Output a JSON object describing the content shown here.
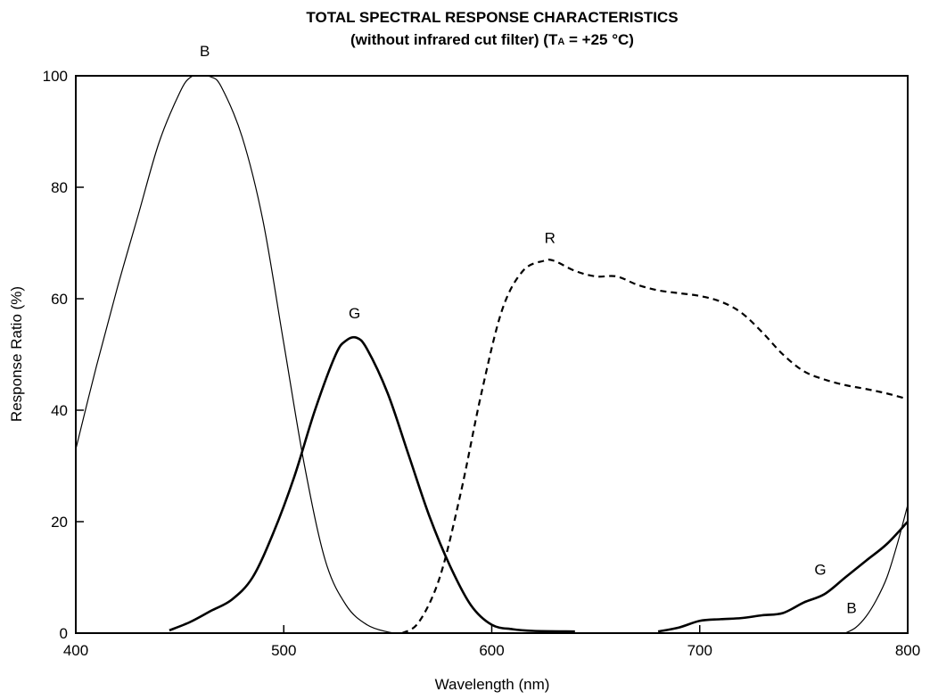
{
  "chart_data": {
    "type": "line",
    "title": "TOTAL SPECTRAL RESPONSE CHARACTERISTICS",
    "subtitle_prefix": "(without infrared cut filter) (T",
    "subtitle_sub": "A",
    "subtitle_suffix": " = +25 °C)",
    "xlabel": "Wavelength (nm)",
    "ylabel": "Response Ratio (%)",
    "xlim": [
      400,
      800
    ],
    "ylim": [
      0,
      100
    ],
    "xticks": [
      "400",
      "500",
      "600",
      "700",
      "800"
    ],
    "yticks": [
      "0",
      "20",
      "40",
      "60",
      "80",
      "100"
    ],
    "grid": false,
    "legend": "none",
    "series": [
      {
        "name": "B",
        "style": "thin-solid",
        "color": "#000000",
        "x": [
          400,
          410,
          420,
          430,
          440,
          450,
          455,
          460,
          465,
          470,
          480,
          490,
          500,
          510,
          520,
          530,
          540,
          550,
          555
        ],
        "y": [
          33,
          48,
          62,
          75,
          88,
          97,
          99.7,
          100,
          99.8,
          98,
          89,
          74,
          52,
          30,
          13,
          5,
          1.5,
          0.2,
          0
        ]
      },
      {
        "name": "B",
        "style": "thin-solid",
        "color": "#000000",
        "x": [
          770,
          775,
          780,
          785,
          790,
          795,
          800
        ],
        "y": [
          0,
          1,
          3,
          6,
          10,
          16,
          23
        ]
      },
      {
        "name": "G",
        "style": "thick-solid",
        "color": "#000000",
        "x": [
          445,
          455,
          465,
          475,
          485,
          495,
          505,
          515,
          525,
          530,
          535,
          540,
          550,
          560,
          570,
          580,
          590,
          600,
          610,
          620,
          640
        ],
        "y": [
          0.5,
          2,
          4,
          6,
          10,
          18,
          28,
          40,
          50,
          52.5,
          53,
          51,
          43,
          32,
          21,
          12,
          5,
          1.5,
          0.7,
          0.4,
          0.3
        ]
      },
      {
        "name": "G",
        "style": "thick-solid",
        "color": "#000000",
        "x": [
          680,
          690,
          700,
          710,
          720,
          730,
          740,
          750,
          760,
          770,
          780,
          790,
          800
        ],
        "y": [
          0.3,
          1,
          2.2,
          2.5,
          2.7,
          3.2,
          3.6,
          5.5,
          7,
          10,
          13,
          16,
          20
        ]
      },
      {
        "name": "R",
        "style": "dashed",
        "color": "#000000",
        "x": [
          557,
          565,
          575,
          585,
          595,
          605,
          615,
          625,
          630,
          640,
          650,
          660,
          670,
          680,
          690,
          700,
          710,
          720,
          730,
          740,
          750,
          760,
          770,
          780,
          790,
          800
        ],
        "y": [
          0,
          2,
          10,
          25,
          43,
          58,
          65,
          66.8,
          66.8,
          65,
          64,
          64,
          62.5,
          61.5,
          61,
          60.5,
          59.5,
          57.5,
          54,
          50,
          47,
          45.5,
          44.5,
          43.8,
          43,
          42
        ]
      }
    ],
    "annotations": [
      {
        "text": "B",
        "x": 462,
        "y": 103.5
      },
      {
        "text": "G",
        "x": 534,
        "y": 56.5
      },
      {
        "text": "R",
        "x": 628,
        "y": 70
      },
      {
        "text": "G",
        "x": 758,
        "y": 10.5
      },
      {
        "text": "B",
        "x": 773,
        "y": 3.6
      }
    ]
  }
}
